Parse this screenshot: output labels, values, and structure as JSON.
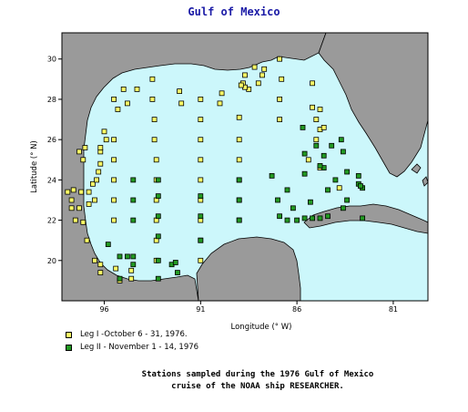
{
  "title": "Gulf of Mexico",
  "colors": {
    "water": "#ccf7fb",
    "land": "#9a9a9a",
    "leg1": "#ffff66",
    "leg2": "#229922",
    "title": "#1a1aa6"
  },
  "map": {
    "x_axis": {
      "label": "Longitude (° W)",
      "range": [
        98.2,
        79.2
      ],
      "ticks": [
        {
          "value": 96,
          "label": "96"
        },
        {
          "value": 91,
          "label": "91"
        },
        {
          "value": 86,
          "label": "86"
        },
        {
          "value": 81,
          "label": "81"
        }
      ]
    },
    "y_axis": {
      "label": "Latitude (° N)",
      "range": [
        18.0,
        31.3
      ],
      "ticks": [
        {
          "value": 30,
          "label": "30"
        },
        {
          "value": 28,
          "label": "28"
        },
        {
          "value": 26,
          "label": "26"
        },
        {
          "value": 24,
          "label": "24"
        },
        {
          "value": 22,
          "label": "22"
        },
        {
          "value": 20,
          "label": "20"
        }
      ]
    },
    "legend": [
      {
        "label": "Leg I -October 6 - 31, 1976.",
        "color": "#ffff66"
      },
      {
        "label": "Leg II - November 1 - 14, 1976",
        "color": "#229922"
      }
    ]
  },
  "chart_data": {
    "type": "scatter",
    "title": "Gulf of Mexico",
    "xlabel": "Longitude (° W)",
    "ylabel": "Latitude (° N)",
    "xlim": [
      98.2,
      79.2
    ],
    "ylim": [
      18.0,
      31.3
    ],
    "series": [
      {
        "name": "Leg I -October 6 - 31, 1976.",
        "points": [
          [
            97.0,
            25.6
          ],
          [
            97.1,
            25.0
          ],
          [
            97.3,
            25.4
          ],
          [
            97.9,
            23.4
          ],
          [
            97.6,
            23.5
          ],
          [
            97.2,
            23.4
          ],
          [
            97.7,
            23.0
          ],
          [
            97.7,
            22.6
          ],
          [
            97.5,
            22.0
          ],
          [
            97.1,
            21.9
          ],
          [
            97.3,
            22.6
          ],
          [
            96.8,
            23.4
          ],
          [
            96.8,
            22.8
          ],
          [
            96.5,
            23.0
          ],
          [
            96.6,
            23.8
          ],
          [
            96.4,
            24.0
          ],
          [
            96.3,
            24.4
          ],
          [
            96.2,
            24.8
          ],
          [
            96.2,
            25.4
          ],
          [
            96.9,
            21.0
          ],
          [
            96.5,
            20.0
          ],
          [
            96.2,
            19.8
          ],
          [
            95.4,
            19.6
          ],
          [
            94.6,
            19.5
          ],
          [
            94.6,
            19.1
          ],
          [
            95.2,
            19.0
          ],
          [
            96.2,
            19.4
          ],
          [
            96.2,
            25.6
          ],
          [
            95.9,
            26.0
          ],
          [
            96.0,
            26.4
          ],
          [
            95.5,
            26.0
          ],
          [
            95.5,
            25.0
          ],
          [
            95.5,
            24.0
          ],
          [
            95.5,
            23.0
          ],
          [
            95.5,
            22.0
          ],
          [
            95.3,
            27.5
          ],
          [
            94.8,
            27.8
          ],
          [
            94.3,
            28.5
          ],
          [
            95.5,
            28.0
          ],
          [
            95.0,
            28.5
          ],
          [
            93.5,
            29.0
          ],
          [
            93.5,
            28.0
          ],
          [
            93.4,
            27.0
          ],
          [
            93.4,
            26.0
          ],
          [
            93.3,
            25.0
          ],
          [
            93.3,
            24.0
          ],
          [
            93.3,
            23.0
          ],
          [
            93.3,
            22.0
          ],
          [
            93.3,
            21.0
          ],
          [
            93.3,
            20.0
          ],
          [
            92.0,
            27.8
          ],
          [
            92.1,
            28.4
          ],
          [
            91.0,
            28.0
          ],
          [
            91.0,
            27.0
          ],
          [
            91.0,
            26.0
          ],
          [
            91.0,
            25.0
          ],
          [
            91.0,
            24.0
          ],
          [
            91.0,
            23.0
          ],
          [
            91.0,
            22.0
          ],
          [
            91.0,
            21.0
          ],
          [
            91.0,
            20.0
          ],
          [
            89.9,
            28.3
          ],
          [
            90.0,
            27.8
          ],
          [
            89.0,
            27.1
          ],
          [
            89.0,
            26.0
          ],
          [
            89.0,
            25.0
          ],
          [
            89.0,
            24.0
          ],
          [
            89.0,
            23.0
          ],
          [
            89.0,
            22.0
          ],
          [
            88.8,
            28.8
          ],
          [
            88.5,
            28.5
          ],
          [
            88.7,
            28.6
          ],
          [
            88.9,
            28.7
          ],
          [
            88.7,
            29.2
          ],
          [
            88.2,
            29.6
          ],
          [
            88.0,
            28.8
          ],
          [
            87.8,
            29.2
          ],
          [
            87.7,
            29.5
          ],
          [
            86.9,
            30.0
          ],
          [
            86.8,
            29.0
          ],
          [
            86.9,
            28.0
          ],
          [
            86.9,
            27.0
          ],
          [
            85.2,
            28.8
          ],
          [
            85.2,
            27.6
          ],
          [
            85.0,
            27.0
          ],
          [
            85.0,
            26.0
          ],
          [
            84.8,
            26.5
          ],
          [
            84.6,
            26.6
          ],
          [
            84.8,
            27.5
          ],
          [
            85.4,
            25.0
          ],
          [
            83.8,
            23.6
          ],
          [
            84.8,
            24.6
          ]
        ]
      },
      {
        "name": "Leg II - November 1 - 14, 1976",
        "points": [
          [
            95.2,
            19.1
          ],
          [
            95.2,
            20.2
          ],
          [
            94.8,
            20.2
          ],
          [
            95.8,
            20.8
          ],
          [
            94.5,
            20.2
          ],
          [
            94.5,
            19.8
          ],
          [
            93.2,
            20.0
          ],
          [
            93.2,
            19.1
          ],
          [
            92.5,
            19.8
          ],
          [
            92.2,
            19.4
          ],
          [
            92.3,
            19.9
          ],
          [
            94.5,
            22.0
          ],
          [
            94.5,
            23.0
          ],
          [
            94.5,
            24.0
          ],
          [
            93.2,
            23.2
          ],
          [
            93.2,
            24.0
          ],
          [
            93.2,
            22.2
          ],
          [
            93.2,
            21.2
          ],
          [
            91.0,
            23.2
          ],
          [
            91.0,
            22.2
          ],
          [
            91.0,
            21.0
          ],
          [
            89.0,
            24.0
          ],
          [
            89.0,
            23.0
          ],
          [
            89.0,
            22.0
          ],
          [
            87.0,
            23.0
          ],
          [
            86.9,
            22.2
          ],
          [
            86.5,
            22.0
          ],
          [
            86.0,
            22.0
          ],
          [
            85.6,
            22.1
          ],
          [
            85.2,
            22.1
          ],
          [
            84.8,
            22.1
          ],
          [
            84.4,
            22.2
          ],
          [
            87.3,
            24.2
          ],
          [
            86.5,
            23.5
          ],
          [
            86.2,
            22.6
          ],
          [
            85.3,
            22.9
          ],
          [
            84.4,
            23.5
          ],
          [
            84.6,
            24.6
          ],
          [
            84.0,
            24.0
          ],
          [
            85.7,
            26.6
          ],
          [
            85.6,
            25.3
          ],
          [
            85.0,
            25.7
          ],
          [
            84.6,
            25.2
          ],
          [
            84.2,
            25.7
          ],
          [
            83.6,
            25.4
          ],
          [
            83.7,
            26.0
          ],
          [
            83.4,
            24.4
          ],
          [
            83.4,
            23.0
          ],
          [
            83.6,
            22.6
          ],
          [
            82.6,
            22.1
          ],
          [
            85.6,
            24.3
          ],
          [
            84.8,
            24.7
          ],
          [
            82.8,
            24.2
          ],
          [
            82.8,
            23.8
          ],
          [
            82.6,
            23.6
          ],
          [
            82.7,
            23.7
          ]
        ]
      }
    ]
  },
  "caption": {
    "line1": "Stations sampled during the 1976 Gulf of Mexico",
    "line2": "cruise of the NOAA ship RESEARCHER."
  }
}
